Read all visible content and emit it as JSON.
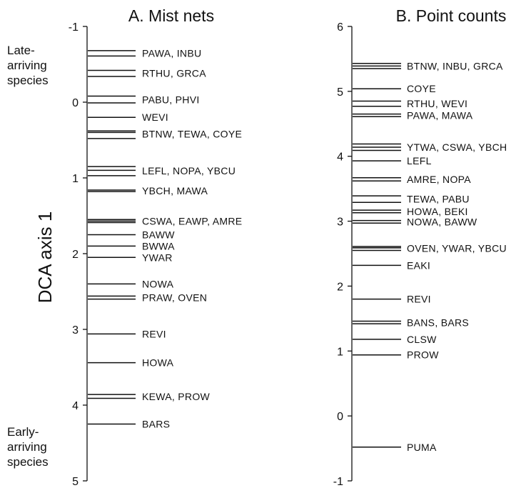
{
  "chart_data": [
    {
      "type": "ordination-axis",
      "title": "A. Mist nets",
      "ylabel": "DCA axis 1",
      "ylim": [
        -1,
        5
      ],
      "inverted": true,
      "ticks": [
        "-1",
        "0",
        "1",
        "2",
        "3",
        "4",
        "5"
      ],
      "tick_values": [
        -1,
        0,
        1,
        2,
        3,
        4,
        5
      ],
      "annotations": [
        {
          "text_lines": [
            "Late-",
            "arriving",
            "species"
          ],
          "position": "top-left"
        },
        {
          "text_lines": [
            "Early-",
            "arriving",
            "species"
          ],
          "position": "bottom-left"
        }
      ],
      "groups": [
        {
          "label": "PAWA, INBU",
          "values": [
            -0.68,
            -0.61
          ]
        },
        {
          "label": "RTHU, GRCA",
          "values": [
            -0.42,
            -0.34
          ]
        },
        {
          "label": "PABU, PHVI",
          "values": [
            -0.08,
            0.01
          ]
        },
        {
          "label": "WEVI",
          "values": [
            0.2
          ]
        },
        {
          "label": "BTNW, TEWA, COYE",
          "values": [
            0.38,
            0.4,
            0.48
          ]
        },
        {
          "label": "LEFL, NOPA, YBCU",
          "values": [
            0.85,
            0.9,
            0.97
          ]
        },
        {
          "label": "YBCH, MAWA",
          "values": [
            1.16,
            1.18
          ]
        },
        {
          "label": "CSWA, EAWP, AMRE",
          "values": [
            1.55,
            1.57,
            1.59
          ]
        },
        {
          "label": "BAWW",
          "values": [
            1.75
          ]
        },
        {
          "label": "BWWA",
          "values": [
            1.9
          ]
        },
        {
          "label": "YWAR",
          "values": [
            2.05
          ]
        },
        {
          "label": "NOWA",
          "values": [
            2.4
          ]
        },
        {
          "label": "PRAW, OVEN",
          "values": [
            2.56,
            2.6
          ]
        },
        {
          "label": "REVI",
          "values": [
            3.06
          ]
        },
        {
          "label": "HOWA",
          "values": [
            3.44
          ]
        },
        {
          "label": "KEWA, PROW",
          "values": [
            3.86,
            3.91
          ]
        },
        {
          "label": "BARS",
          "values": [
            4.25
          ]
        }
      ]
    },
    {
      "type": "ordination-axis",
      "title": "B. Point counts",
      "ylabel": "",
      "ylim": [
        -1,
        6
      ],
      "inverted": false,
      "ticks": [
        "6",
        "5",
        "4",
        "3",
        "2",
        "1",
        "0",
        "-1"
      ],
      "tick_values": [
        6,
        5,
        4,
        3,
        2,
        1,
        0,
        -1
      ],
      "groups": [
        {
          "label": "BTNW, INBU, GRCA",
          "values": [
            5.43,
            5.39,
            5.35
          ]
        },
        {
          "label": "COYE",
          "values": [
            5.04
          ]
        },
        {
          "label": "RTHU, WEVI",
          "values": [
            4.85,
            4.77
          ]
        },
        {
          "label": "PAWA, MAWA",
          "values": [
            4.65,
            4.61
          ]
        },
        {
          "label": "YTWA, CSWA, YBCH",
          "values": [
            4.19,
            4.14,
            4.09
          ]
        },
        {
          "label": "LEFL",
          "values": [
            3.93
          ]
        },
        {
          "label": "AMRE, NOPA",
          "values": [
            3.67,
            3.62
          ]
        },
        {
          "label": "TEWA, PABU",
          "values": [
            3.39,
            3.29
          ]
        },
        {
          "label": "HOWA, BEKI",
          "values": [
            3.17,
            3.13
          ]
        },
        {
          "label": "NOWA, BAWW",
          "values": [
            3.01,
            2.97
          ]
        },
        {
          "label": "OVEN, YWAR, YBCU",
          "values": [
            2.61,
            2.59,
            2.55
          ]
        },
        {
          "label": "EAKI",
          "values": [
            2.32
          ]
        },
        {
          "label": "REVI",
          "values": [
            1.8
          ]
        },
        {
          "label": "BANS, BARS",
          "values": [
            1.46,
            1.42
          ]
        },
        {
          "label": "CLSW",
          "values": [
            1.18
          ]
        },
        {
          "label": "PROW",
          "values": [
            0.94
          ]
        },
        {
          "label": "PUMA",
          "values": [
            -0.48
          ]
        }
      ]
    }
  ]
}
